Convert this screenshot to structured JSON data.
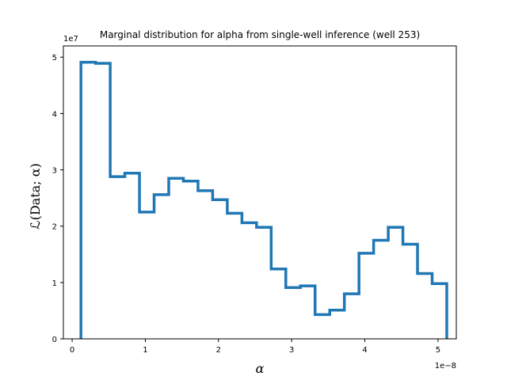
{
  "chart_data": {
    "type": "line",
    "style": "step-histogram",
    "title": "Marginal distribution for alpha from single-well inference (well 253)",
    "xlabel": "α",
    "ylabel": "ℒ(Data; α)",
    "x_offset_label": "1e−8",
    "y_offset_label": "1e7",
    "x_scale": 1e-08,
    "y_scale": 10000000.0,
    "xlim": [
      -0.12,
      5.25
    ],
    "ylim": [
      0,
      5.2
    ],
    "xticks": [
      0,
      1,
      2,
      3,
      4,
      5
    ],
    "yticks": [
      0,
      1,
      2,
      3,
      4,
      5
    ],
    "grid": false,
    "color": "#1f77b4",
    "bin_edges": [
      0.12,
      0.32,
      0.52,
      0.72,
      0.92,
      1.12,
      1.32,
      1.52,
      1.72,
      1.92,
      2.12,
      2.32,
      2.52,
      2.72,
      2.92,
      3.12,
      3.32,
      3.52,
      3.72,
      3.92,
      4.12,
      4.32,
      4.52,
      4.72,
      4.92
    ],
    "values": [
      4.91,
      4.89,
      2.88,
      2.94,
      2.25,
      2.56,
      2.85,
      2.8,
      2.63,
      2.47,
      2.23,
      2.06,
      1.98,
      1.24,
      0.91,
      0.94,
      0.43,
      0.51,
      0.8,
      1.52,
      1.75,
      1.98,
      1.68,
      1.16,
      0.98
    ]
  }
}
